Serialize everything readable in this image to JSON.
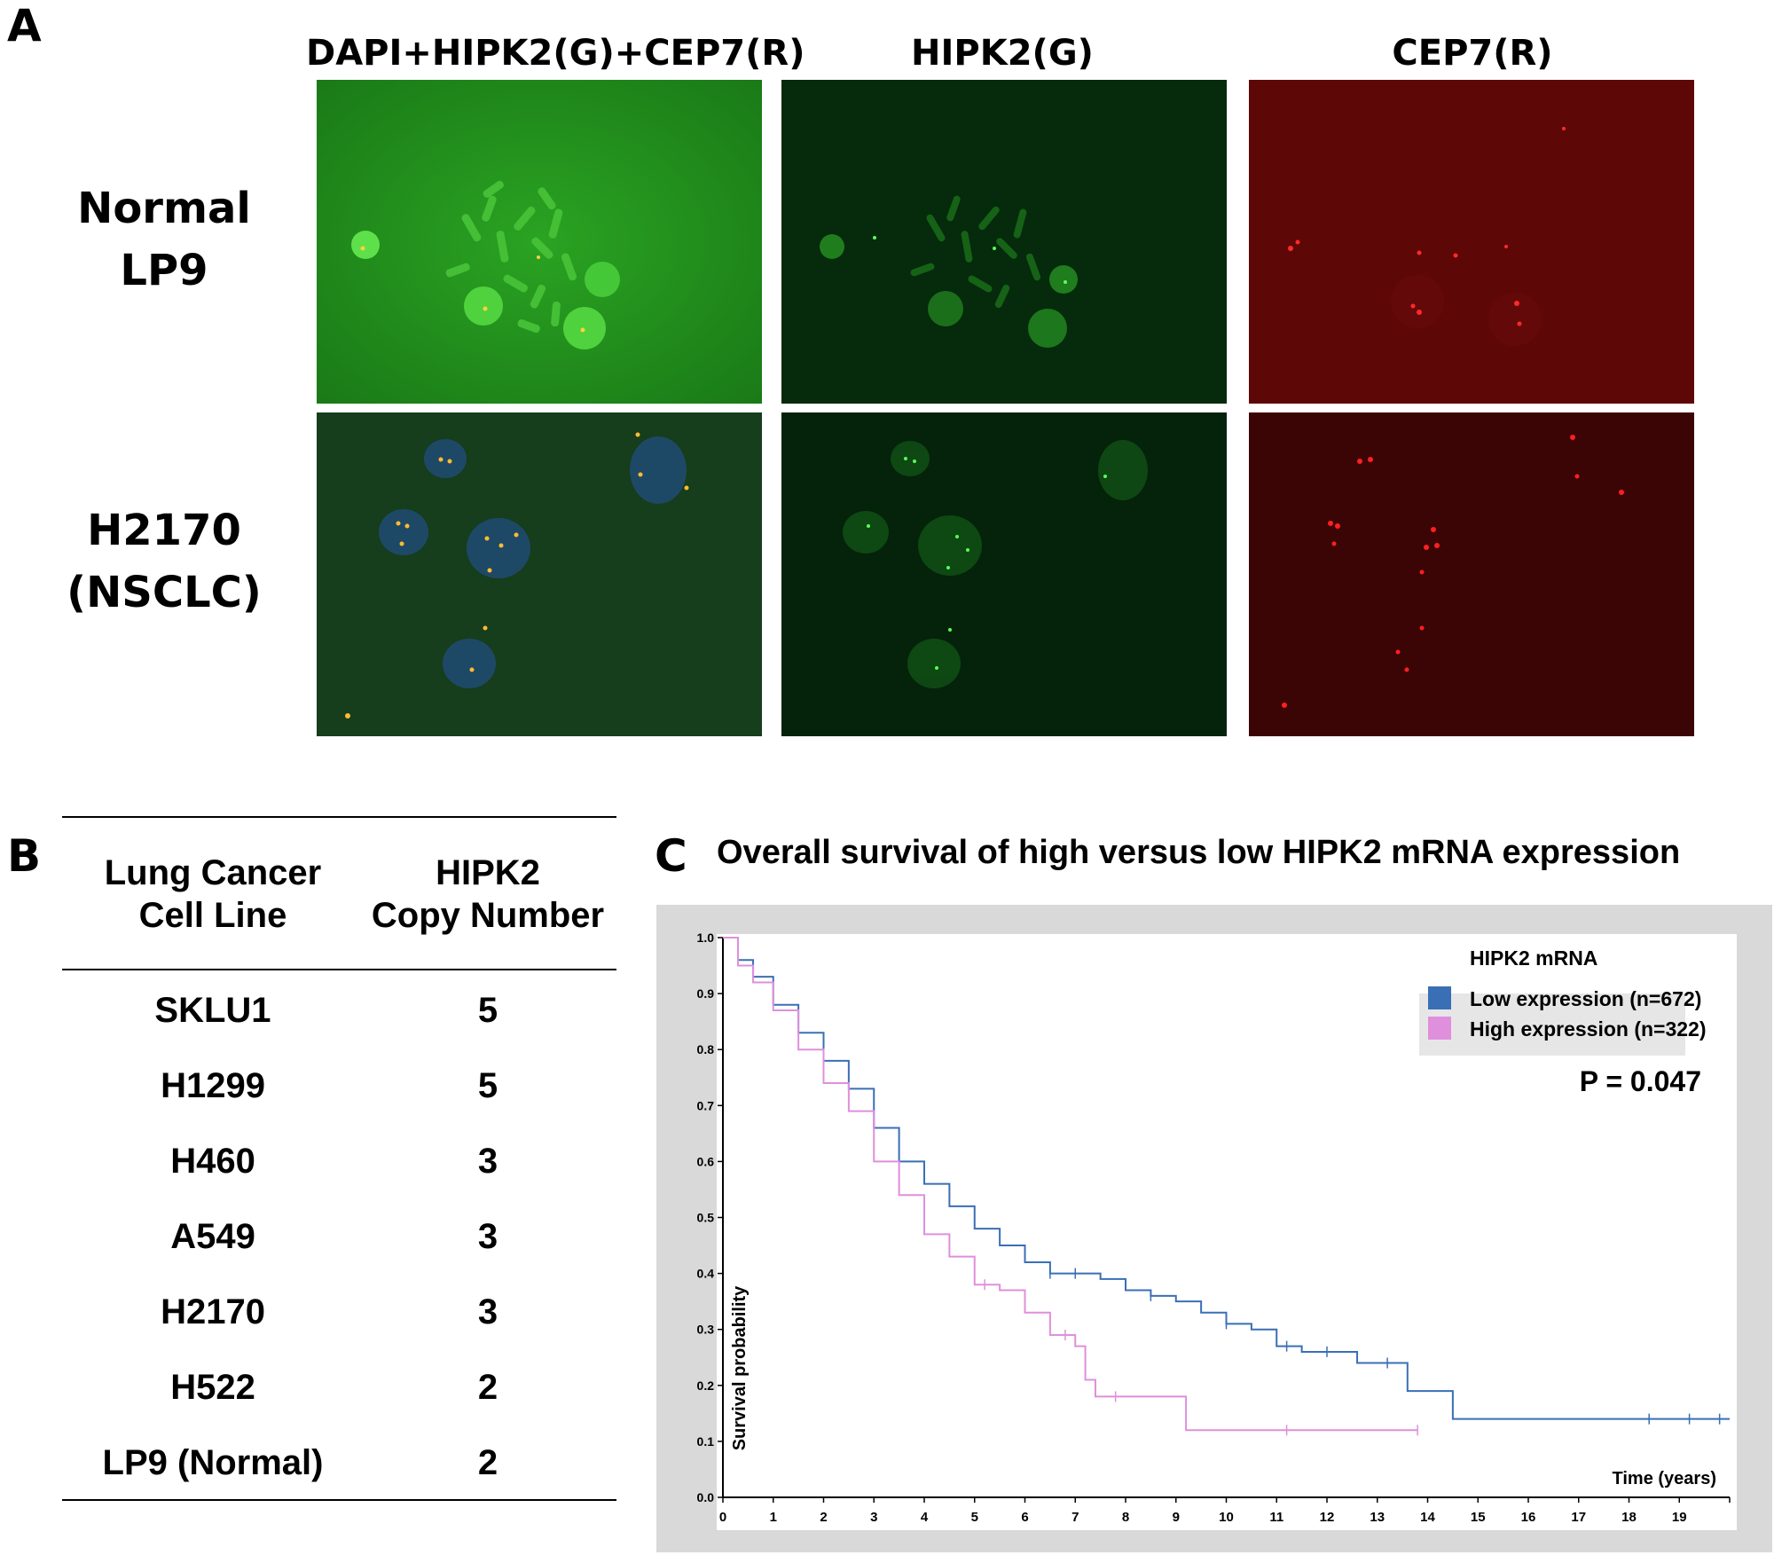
{
  "panels": {
    "a": {
      "letter": "A"
    },
    "b": {
      "letter": "B"
    },
    "c": {
      "letter": "C"
    }
  },
  "fish": {
    "columns": [
      "DAPI+HIPK2(G)+CEP7(R)",
      "HIPK2(G)",
      "CEP7(R)"
    ],
    "rows": [
      {
        "label_line1": "Normal",
        "label_line2": "LP9"
      },
      {
        "label_line1": "H2170",
        "label_line2": "(NSCLC)"
      }
    ],
    "colors": {
      "merge_bg_top": "#1f8f1a",
      "merge_bg_bottom": "#153f1a",
      "green_bg": "#04200a",
      "red_bg_top": "#5a0606",
      "red_bg_bottom": "#3a0505"
    }
  },
  "table": {
    "header_col1_line1": "Lung Cancer",
    "header_col1_line2": "Cell Line",
    "header_col2_line1": "HIPK2",
    "header_col2_line2": "Copy Number",
    "rows": [
      {
        "cell_line": "SKLU1",
        "copy_number": "5"
      },
      {
        "cell_line": "H1299",
        "copy_number": "5"
      },
      {
        "cell_line": "H460",
        "copy_number": "3"
      },
      {
        "cell_line": "A549",
        "copy_number": "3"
      },
      {
        "cell_line": "H2170",
        "copy_number": "3"
      },
      {
        "cell_line": "H522",
        "copy_number": "2"
      },
      {
        "cell_line": "LP9 (Normal)",
        "copy_number": "2"
      }
    ]
  },
  "chart_data": {
    "type": "line",
    "title": "Overall survival of high versus low HIPK2 mRNA expression",
    "xlabel": "Time (years)",
    "ylabel": "Survival probability",
    "xlim": [
      0,
      20
    ],
    "ylim": [
      0,
      1.0
    ],
    "x_ticks": [
      "0",
      "1",
      "2",
      "3",
      "4",
      "5",
      "6",
      "7",
      "8",
      "9",
      "10",
      "11",
      "12",
      "13",
      "14",
      "15",
      "16",
      "17",
      "18",
      "19"
    ],
    "y_ticks": [
      "0.0",
      "0.1",
      "0.2",
      "0.3",
      "0.4",
      "0.5",
      "0.6",
      "0.7",
      "0.8",
      "0.9",
      "1.0"
    ],
    "legend_title": "HIPK2 mRNA",
    "legend_position": "top-right",
    "annotation": "P = 0.047",
    "series": [
      {
        "name": "Low expression (n=672)",
        "color": "#3a6fb5",
        "points": [
          [
            0,
            1.0
          ],
          [
            0.3,
            0.96
          ],
          [
            0.6,
            0.93
          ],
          [
            1.0,
            0.88
          ],
          [
            1.5,
            0.83
          ],
          [
            2.0,
            0.78
          ],
          [
            2.5,
            0.73
          ],
          [
            3.0,
            0.66
          ],
          [
            3.5,
            0.6
          ],
          [
            4.0,
            0.56
          ],
          [
            4.5,
            0.52
          ],
          [
            5.0,
            0.48
          ],
          [
            5.5,
            0.45
          ],
          [
            6.0,
            0.42
          ],
          [
            6.5,
            0.4
          ],
          [
            7.0,
            0.4
          ],
          [
            7.5,
            0.39
          ],
          [
            8.0,
            0.37
          ],
          [
            8.5,
            0.36
          ],
          [
            9.0,
            0.35
          ],
          [
            9.5,
            0.33
          ],
          [
            10.0,
            0.31
          ],
          [
            10.5,
            0.3
          ],
          [
            11.0,
            0.27
          ],
          [
            11.5,
            0.26
          ],
          [
            12.0,
            0.26
          ],
          [
            12.5,
            0.26
          ],
          [
            12.6,
            0.24
          ],
          [
            13.0,
            0.24
          ],
          [
            13.6,
            0.24
          ],
          [
            13.6,
            0.19
          ],
          [
            14.5,
            0.19
          ],
          [
            14.5,
            0.14
          ],
          [
            20.0,
            0.14
          ]
        ],
        "censor_x": [
          6.5,
          7.0,
          8.5,
          10.0,
          11.2,
          12.0,
          13.2,
          18.4,
          19.2,
          19.8
        ]
      },
      {
        "name": "High expression (n=322)",
        "color": "#e08fdc",
        "points": [
          [
            0,
            1.0
          ],
          [
            0.3,
            0.95
          ],
          [
            0.6,
            0.92
          ],
          [
            1.0,
            0.87
          ],
          [
            1.5,
            0.8
          ],
          [
            2.0,
            0.74
          ],
          [
            2.5,
            0.69
          ],
          [
            3.0,
            0.6
          ],
          [
            3.5,
            0.54
          ],
          [
            4.0,
            0.47
          ],
          [
            4.5,
            0.43
          ],
          [
            5.0,
            0.38
          ],
          [
            5.5,
            0.37
          ],
          [
            6.0,
            0.33
          ],
          [
            6.5,
            0.29
          ],
          [
            7.0,
            0.27
          ],
          [
            7.2,
            0.21
          ],
          [
            7.4,
            0.18
          ],
          [
            9.2,
            0.18
          ],
          [
            9.2,
            0.12
          ],
          [
            13.8,
            0.12
          ]
        ],
        "censor_x": [
          5.2,
          6.8,
          7.8,
          11.2,
          13.8
        ]
      }
    ]
  }
}
